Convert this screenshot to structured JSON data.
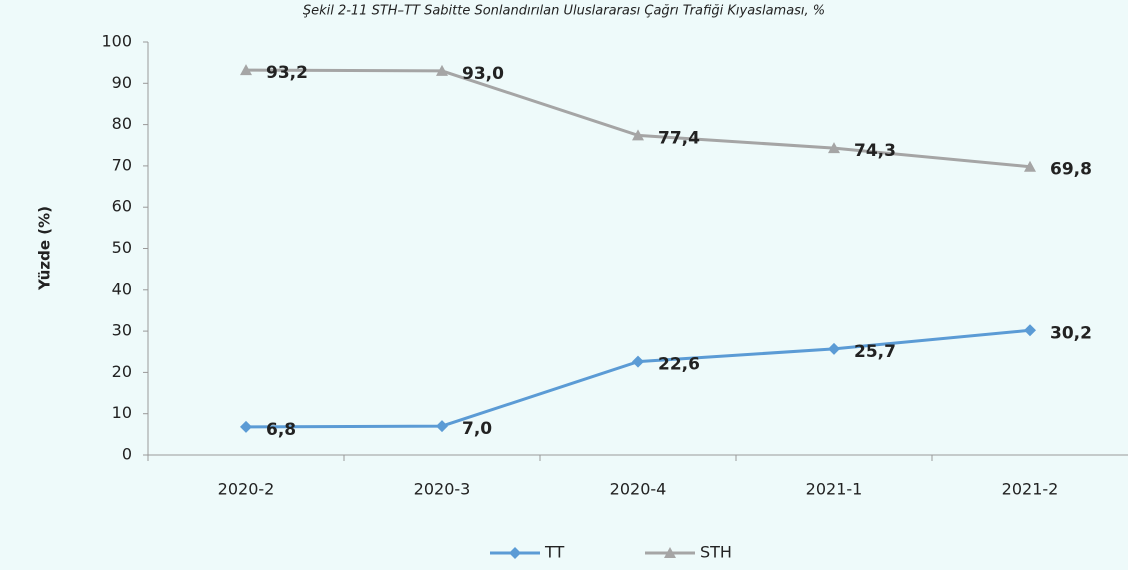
{
  "chart_data": {
    "type": "line",
    "title": "Şekil 2-11 STH–TT Sabitte Sonlandırılan Uluslararası Çağrı Trafiği Kıyaslaması, %",
    "y_label": "Yüzde  (%)",
    "categories": [
      "2020-2",
      "2020-3",
      "2020-4",
      "2021-1",
      "2021-2"
    ],
    "series": [
      {
        "name": "TT",
        "color": "#5b9bd5",
        "marker": "diamond",
        "values": [
          6.8,
          7.0,
          22.6,
          25.7,
          30.2
        ],
        "value_labels": [
          "6,8",
          "7,0",
          "22,6",
          "25,7",
          "30,2"
        ]
      },
      {
        "name": "STH",
        "color": "#a5a5a5",
        "marker": "triangle",
        "values": [
          93.2,
          93.0,
          77.4,
          74.3,
          69.8
        ],
        "value_labels": [
          "93,2",
          "93,0",
          "77,4",
          "74,3",
          "69,8"
        ]
      }
    ],
    "ylim": [
      0,
      100
    ],
    "yticks": [
      0,
      10,
      20,
      30,
      40,
      50,
      60,
      70,
      80,
      90,
      100
    ],
    "grid": false,
    "legend": "bottom"
  }
}
